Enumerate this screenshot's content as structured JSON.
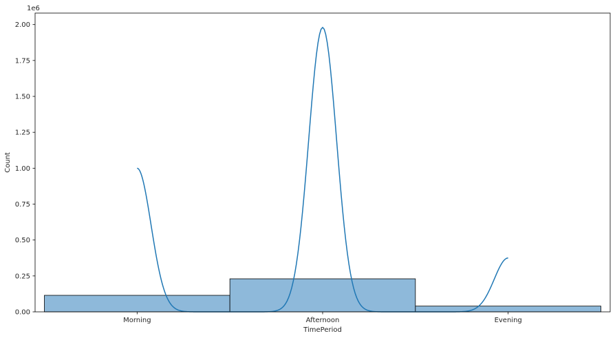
{
  "chart_data": {
    "type": "bar",
    "title": "",
    "xlabel": "TimePeriod",
    "ylabel": "Count",
    "y_offset_label": "1e6",
    "categories": [
      "Morning",
      "Afternoon",
      "Evening"
    ],
    "values": [
      115000,
      230000,
      40000
    ],
    "ylim": [
      0,
      2080000
    ],
    "yticks": [
      0,
      250000,
      500000,
      750000,
      1000000,
      1250000,
      1500000,
      1750000,
      2000000
    ],
    "ytick_labels": [
      "0.00",
      "0.25",
      "0.50",
      "0.75",
      "1.00",
      "1.25",
      "1.50",
      "1.75",
      "2.00"
    ],
    "grid": false,
    "kde_peaks": [
      {
        "category": "Morning",
        "center": 0.0,
        "height": 1000000,
        "sigma": 0.075,
        "side": "right"
      },
      {
        "category": "Afternoon",
        "center": 1.0,
        "height": 1980000,
        "sigma": 0.075,
        "side": "both"
      },
      {
        "category": "Evening",
        "center": 2.0,
        "height": 375000,
        "sigma": 0.075,
        "side": "left"
      }
    ],
    "colors": {
      "bar_fill": "#8eb9da",
      "bar_edge": "#000000",
      "kde_line": "#1f77b4",
      "axis": "#000000",
      "text": "#262626"
    }
  }
}
